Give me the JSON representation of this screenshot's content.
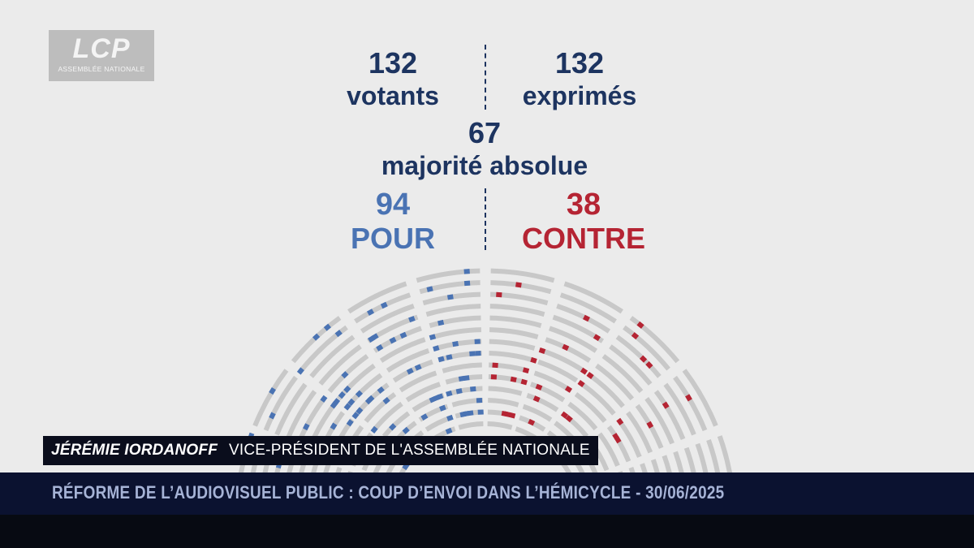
{
  "logo": {
    "brand": "LCP",
    "subtitle": "ASSEMBLÉE NATIONALE"
  },
  "results": {
    "votants": {
      "number": "132",
      "label": "votants"
    },
    "exprimes": {
      "number": "132",
      "label": "exprimés"
    },
    "majorite": {
      "number": "67",
      "label": "majorité absolue"
    },
    "pour": {
      "number": "94",
      "label": "POUR"
    },
    "contre": {
      "number": "38",
      "label": "CONTRE"
    }
  },
  "hemicycle": {
    "seats_pour": 94,
    "seats_contre": 38,
    "colors": {
      "pour": "#4a73b3",
      "contre": "#b52433",
      "empty": "#c8c8c8",
      "ring": "#f4f4f4"
    }
  },
  "lower_third": {
    "name": "JÉRÉMIE IORDANOFF",
    "role": "VICE-PRÉSIDENT DE L'ASSEMBLÉE NATIONALE"
  },
  "ticker": {
    "text": "RÉFORME DE L’AUDIOVISUEL PUBLIC : COUP D’ENVOI DANS L’HÉMICYCLE - 30/06/2025"
  },
  "colors": {
    "navy_text": "#1d3460",
    "pour_blue": "#4a73b3",
    "contre_red": "#b52433",
    "ticker_bg": "#0b1230",
    "ticker_text": "#a6b3d6"
  }
}
